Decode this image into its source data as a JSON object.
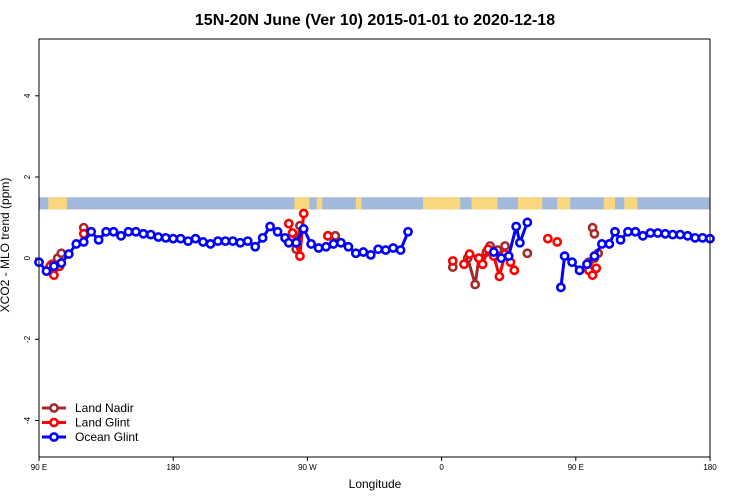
{
  "chart_data": {
    "type": "line",
    "title": "15N-20N June (Ver 10)   2015-01-01 to 2020-12-18",
    "xlabel": "Longitude",
    "ylabel": "XCO2 - MLO trend (ppm)",
    "xlim": [
      -90,
      270
    ],
    "ylim": [
      -4.9,
      5.4
    ],
    "x_ticks": [
      {
        "value": -90,
        "label": "90 E"
      },
      {
        "value": -18,
        "label": "180"
      },
      {
        "value": 54,
        "label": "90 W"
      },
      {
        "value": 126,
        "label": "0"
      },
      {
        "value": 198,
        "label": "90 E"
      },
      {
        "value": 270,
        "label": "180"
      }
    ],
    "y_ticks": [
      {
        "value": -4,
        "label": "-4"
      },
      {
        "value": -2,
        "label": "-2"
      },
      {
        "value": 0,
        "label": "0"
      },
      {
        "value": 2,
        "label": "2"
      },
      {
        "value": 4,
        "label": "4"
      }
    ],
    "land_band": {
      "y_range": [
        1.2,
        1.5
      ],
      "ocean_color": "#a3b9dc",
      "land_color": "#f9d77e",
      "land_segments": [
        [
          -85,
          -75
        ],
        [
          47,
          55
        ],
        [
          59,
          62
        ],
        [
          80,
          83
        ],
        [
          116,
          136
        ],
        [
          142,
          156
        ],
        [
          167,
          180
        ],
        [
          188,
          195
        ],
        [
          213,
          219
        ],
        [
          224,
          231
        ]
      ]
    },
    "legend": {
      "position": "bottom-left",
      "entries": [
        {
          "name": "Land Nadir",
          "color": "#a52a2a"
        },
        {
          "name": "Land Glint",
          "color": "#ff0000"
        },
        {
          "name": "Ocean Glint",
          "color": "#0000ff"
        }
      ]
    },
    "series": [
      {
        "name": "Land Nadir",
        "color": "#a52a2a",
        "segments": [
          [
            [
              -83,
              -0.15
            ],
            [
              -80,
              0.0
            ],
            [
              -78,
              0.12
            ]
          ],
          [
            [
              -66,
              0.75
            ],
            [
              -65,
              0.6
            ]
          ],
          [
            [
              46,
              0.5
            ],
            [
              48,
              0.22
            ],
            [
              50,
              0.8
            ]
          ],
          [
            [
              65,
              0.55
            ],
            [
              69,
              0.55
            ]
          ],
          [
            [
              132,
              -0.22
            ]
          ],
          [
            [
              140,
              0.0
            ],
            [
              144,
              -0.65
            ],
            [
              146,
              0.0
            ],
            [
              150,
              0.15
            ],
            [
              152,
              0.3
            ],
            [
              156,
              0.2
            ],
            [
              160,
              0.3
            ]
          ],
          [
            [
              172,
              0.12
            ]
          ],
          [
            [
              205,
              -0.1
            ],
            [
              208,
              0.0
            ],
            [
              210,
              0.12
            ]
          ],
          [
            [
              207,
              0.75
            ],
            [
              208,
              0.6
            ]
          ]
        ]
      },
      {
        "name": "Land Glint",
        "color": "#ff0000",
        "segments": [
          [
            [
              -84,
              -0.2
            ],
            [
              -82,
              -0.42
            ],
            [
              -79,
              -0.2
            ]
          ],
          [
            [
              -66,
              0.6
            ]
          ],
          [
            [
              44,
              0.85
            ],
            [
              46,
              0.62
            ],
            [
              50,
              0.05
            ],
            [
              52,
              1.1
            ]
          ],
          [
            [
              65,
              0.55
            ]
          ],
          [
            [
              132,
              -0.07
            ]
          ],
          [
            [
              138,
              -0.15
            ],
            [
              141,
              0.1
            ],
            [
              146,
              0.0
            ],
            [
              148,
              -0.15
            ],
            [
              151,
              0.22
            ],
            [
              154,
              0.05
            ],
            [
              157,
              -0.45
            ],
            [
              160,
              0.1
            ],
            [
              163,
              -0.1
            ],
            [
              165,
              -0.3
            ]
          ],
          [
            [
              183,
              0.48
            ]
          ],
          [
            [
              188,
              0.4
            ]
          ],
          [
            [
              205,
              -0.3
            ],
            [
              207,
              -0.42
            ],
            [
              209,
              -0.25
            ]
          ]
        ]
      },
      {
        "name": "Ocean Glint",
        "color": "#0000ff",
        "segments": [
          [
            [
              -90,
              -0.1
            ],
            [
              -86,
              -0.32
            ],
            [
              -82,
              -0.2
            ],
            [
              -78,
              -0.12
            ],
            [
              -74,
              0.1
            ],
            [
              -70,
              0.35
            ],
            [
              -66,
              0.4
            ],
            [
              -62,
              0.65
            ],
            [
              -58,
              0.45
            ],
            [
              -54,
              0.65
            ],
            [
              -50,
              0.65
            ],
            [
              -46,
              0.55
            ],
            [
              -42,
              0.65
            ],
            [
              -38,
              0.65
            ],
            [
              -34,
              0.6
            ],
            [
              -30,
              0.58
            ],
            [
              -26,
              0.52
            ],
            [
              -22,
              0.5
            ],
            [
              -18,
              0.48
            ],
            [
              -14,
              0.48
            ],
            [
              -10,
              0.42
            ],
            [
              -6,
              0.48
            ],
            [
              -2,
              0.4
            ],
            [
              2,
              0.35
            ],
            [
              6,
              0.42
            ],
            [
              10,
              0.42
            ],
            [
              14,
              0.42
            ],
            [
              18,
              0.38
            ],
            [
              22,
              0.42
            ],
            [
              26,
              0.28
            ],
            [
              30,
              0.5
            ],
            [
              34,
              0.78
            ],
            [
              38,
              0.65
            ],
            [
              42,
              0.5
            ],
            [
              44,
              0.38
            ],
            [
              48,
              0.38
            ],
            [
              52,
              0.72
            ],
            [
              56,
              0.35
            ],
            [
              60,
              0.25
            ],
            [
              64,
              0.28
            ],
            [
              68,
              0.35
            ],
            [
              72,
              0.38
            ],
            [
              76,
              0.28
            ],
            [
              80,
              0.12
            ],
            [
              84,
              0.15
            ],
            [
              88,
              0.08
            ],
            [
              92,
              0.22
            ],
            [
              96,
              0.2
            ],
            [
              100,
              0.25
            ],
            [
              104,
              0.2
            ],
            [
              108,
              0.65
            ]
          ],
          [
            [
              154,
              0.15
            ],
            [
              158,
              0.0
            ],
            [
              162,
              0.05
            ],
            [
              166,
              0.78
            ],
            [
              168,
              0.38
            ],
            [
              172,
              0.88
            ]
          ],
          [
            [
              190,
              -0.72
            ],
            [
              192,
              0.05
            ],
            [
              196,
              -0.1
            ],
            [
              200,
              -0.3
            ],
            [
              204,
              -0.15
            ],
            [
              208,
              0.05
            ],
            [
              212,
              0.35
            ],
            [
              216,
              0.35
            ],
            [
              219,
              0.65
            ],
            [
              222,
              0.45
            ],
            [
              226,
              0.65
            ],
            [
              230,
              0.65
            ],
            [
              234,
              0.55
            ],
            [
              238,
              0.62
            ],
            [
              242,
              0.62
            ],
            [
              246,
              0.6
            ],
            [
              250,
              0.58
            ],
            [
              254,
              0.58
            ],
            [
              258,
              0.55
            ],
            [
              262,
              0.5
            ],
            [
              266,
              0.5
            ],
            [
              270,
              0.48
            ]
          ]
        ]
      }
    ]
  }
}
